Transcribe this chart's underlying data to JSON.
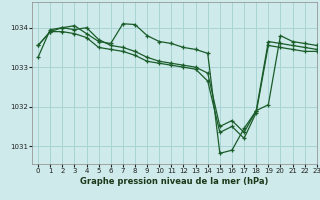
{
  "title": "Graphe pression niveau de la mer (hPa)",
  "bg_color": "#ceeaea",
  "grid_color": "#a8d4d4",
  "line_color": "#1a5c2a",
  "xlim": [
    -0.5,
    23
  ],
  "ylim": [
    1030.55,
    1034.65
  ],
  "yticks": [
    1031,
    1032,
    1033,
    1034
  ],
  "xticks": [
    0,
    1,
    2,
    3,
    4,
    5,
    6,
    7,
    8,
    9,
    10,
    11,
    12,
    13,
    14,
    15,
    16,
    17,
    18,
    19,
    20,
    21,
    22,
    23
  ],
  "line1": {
    "x": [
      0,
      1,
      2,
      3,
      4,
      5,
      6,
      7,
      8,
      9,
      10,
      11,
      12,
      13,
      14,
      15,
      16,
      17,
      18,
      19,
      20,
      21,
      22,
      23
    ],
    "y": [
      1033.25,
      1033.95,
      1034.0,
      1034.05,
      1033.85,
      1033.65,
      1033.6,
      1034.1,
      1034.08,
      1033.8,
      1033.65,
      1033.6,
      1033.5,
      1033.45,
      1033.35,
      1030.82,
      1030.9,
      1031.45,
      1031.9,
      1032.05,
      1033.8,
      1033.65,
      1033.6,
      1033.55
    ]
  },
  "line2": {
    "x": [
      0,
      1,
      2,
      3,
      4,
      5,
      6,
      7,
      8,
      9,
      10,
      11,
      12,
      13,
      14,
      15,
      16,
      17,
      18,
      19,
      20,
      21,
      22,
      23
    ],
    "y": [
      1033.55,
      1033.9,
      1034.0,
      1033.95,
      1034.0,
      1033.7,
      1033.55,
      1033.5,
      1033.4,
      1033.25,
      1033.15,
      1033.1,
      1033.05,
      1033.0,
      1032.85,
      1031.5,
      1031.65,
      1031.35,
      1031.9,
      1033.65,
      1033.6,
      1033.55,
      1033.5,
      1033.45
    ]
  },
  "line3": {
    "x": [
      0,
      1,
      2,
      3,
      4,
      5,
      6,
      7,
      8,
      9,
      10,
      11,
      12,
      13,
      14,
      15,
      16,
      17,
      18,
      19,
      20,
      21,
      22,
      23
    ],
    "y": [
      1033.55,
      1033.9,
      1033.9,
      1033.85,
      1033.75,
      1033.5,
      1033.45,
      1033.4,
      1033.3,
      1033.15,
      1033.1,
      1033.05,
      1033.0,
      1032.95,
      1032.65,
      1031.35,
      1031.5,
      1031.2,
      1031.85,
      1033.55,
      1033.5,
      1033.45,
      1033.4,
      1033.4
    ]
  }
}
